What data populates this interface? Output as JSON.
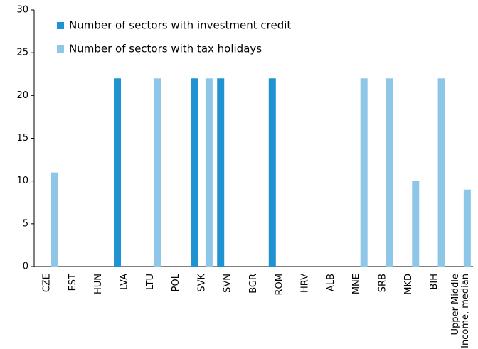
{
  "chart_data": {
    "type": "bar",
    "categories": [
      "CZE",
      "EST",
      "HUN",
      "LVA",
      "LTU",
      "POL",
      "SVK",
      "SVN",
      "BGR",
      "ROM",
      "HRV",
      "ALB",
      "MNE",
      "SRB",
      "MKD",
      "BIH",
      "Upper Middle Income, median"
    ],
    "series": [
      {
        "name": "Number of sectors with investment credit",
        "color": "#1f93d1",
        "values": [
          0,
          0,
          0,
          22,
          0,
          0,
          22,
          22,
          0,
          22,
          0,
          0,
          0,
          0,
          0,
          0,
          0
        ]
      },
      {
        "name": "Number of sectors with tax holidays",
        "color": "#8ec6e8",
        "values": [
          11,
          0,
          0,
          0,
          22,
          0,
          22,
          0,
          0,
          0,
          0,
          0,
          22,
          22,
          10,
          22,
          9
        ]
      }
    ],
    "ylim": [
      0,
      30
    ],
    "yticks": [
      0,
      5,
      10,
      15,
      20,
      25,
      30
    ],
    "legend": "upper-left"
  }
}
